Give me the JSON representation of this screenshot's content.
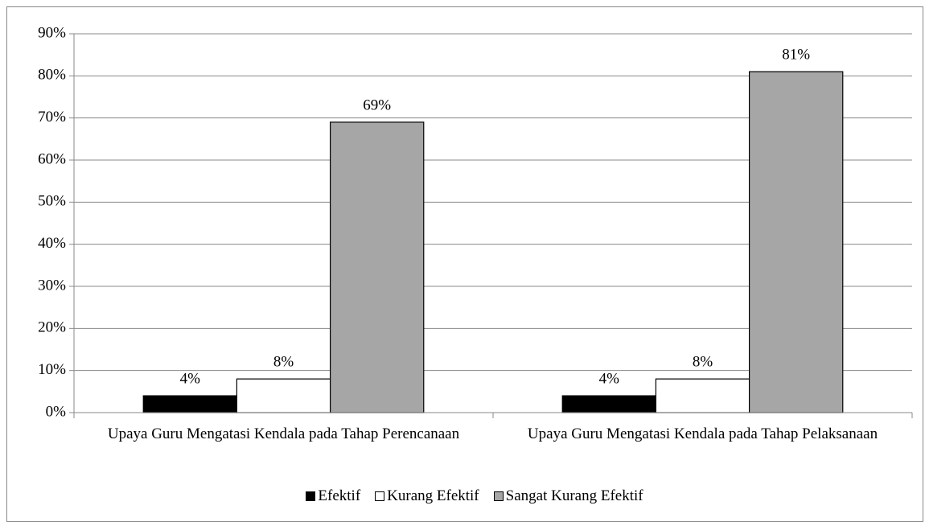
{
  "chart_data": {
    "type": "bar",
    "categories": [
      "Upaya Guru Mengatasi Kendala pada Tahap Perencanaan",
      "Upaya Guru Mengatasi Kendala pada Tahap Pelaksanaan"
    ],
    "series": [
      {
        "name": "Efektif",
        "color": "#000000",
        "values": [
          4,
          4
        ],
        "value_labels": [
          "4%",
          "4%"
        ]
      },
      {
        "name": "Kurang Efektif",
        "color": "#ffffff",
        "values": [
          8,
          8
        ],
        "value_labels": [
          "8%",
          "8%"
        ]
      },
      {
        "name": "Sangat Kurang Efektif",
        "color": "#a6a6a6",
        "values": [
          69,
          81
        ],
        "value_labels": [
          "69%",
          "81%"
        ]
      }
    ],
    "ylim": [
      0,
      90
    ],
    "yticks": [
      {
        "value": 0,
        "label": "0%"
      },
      {
        "value": 10,
        "label": "10%"
      },
      {
        "value": 20,
        "label": "20%"
      },
      {
        "value": 30,
        "label": "30%"
      },
      {
        "value": 40,
        "label": "40%"
      },
      {
        "value": 50,
        "label": "50%"
      },
      {
        "value": 60,
        "label": "60%"
      },
      {
        "value": 70,
        "label": "70%"
      },
      {
        "value": 80,
        "label": "80%"
      },
      {
        "value": 90,
        "label": "90%"
      }
    ],
    "grid": true,
    "legend": "bottom"
  }
}
